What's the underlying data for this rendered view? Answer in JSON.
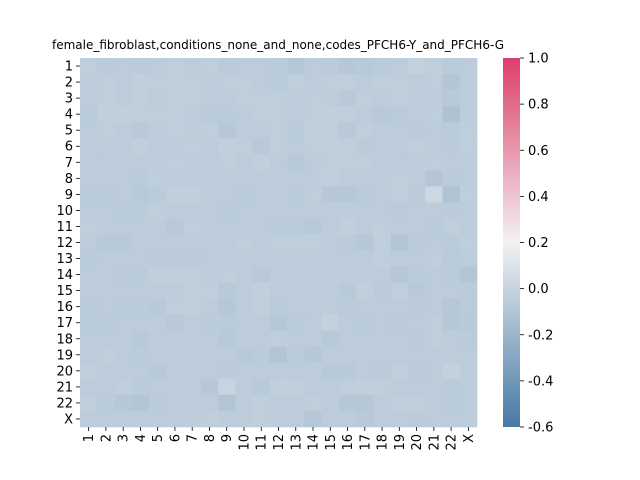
{
  "chart_data": {
    "type": "heatmap",
    "title": "female_fibroblast,conditions_none_and_none,codes_PFCH6-Y_and_PFCH6-G",
    "xlabel": "",
    "ylabel": "",
    "x_categories": [
      "1",
      "2",
      "3",
      "4",
      "5",
      "6",
      "7",
      "8",
      "9",
      "10",
      "11",
      "12",
      "13",
      "14",
      "15",
      "16",
      "17",
      "18",
      "19",
      "20",
      "21",
      "22",
      "X"
    ],
    "y_categories": [
      "1",
      "2",
      "3",
      "4",
      "5",
      "6",
      "7",
      "8",
      "9",
      "10",
      "11",
      "12",
      "13",
      "14",
      "15",
      "16",
      "17",
      "18",
      "19",
      "20",
      "21",
      "22",
      "X"
    ],
    "colorbar": {
      "vmin": -0.6,
      "vmax": 1.0,
      "ticks": [
        "-0.6",
        "-0.4",
        "-0.2",
        "0.0",
        "0.2",
        "0.4",
        "0.6",
        "0.8",
        "1.0"
      ],
      "tick_values": [
        -0.6,
        -0.4,
        -0.2,
        0.0,
        0.2,
        0.4,
        0.6,
        0.8,
        1.0
      ],
      "colormap": "diverging blue-white-red",
      "low_color": "#4679a5",
      "mid_color": "#f2f2f2",
      "high_color": "#dd3e6b"
    },
    "values": [
      [
        -0.04,
        -0.06,
        -0.05,
        -0.06,
        -0.05,
        -0.04,
        -0.05,
        -0.04,
        -0.06,
        -0.05,
        -0.05,
        -0.06,
        -0.08,
        -0.05,
        -0.06,
        -0.08,
        -0.07,
        -0.06,
        -0.05,
        -0.02,
        -0.04,
        -0.06,
        -0.05
      ],
      [
        -0.05,
        -0.04,
        -0.05,
        -0.03,
        -0.04,
        -0.04,
        -0.04,
        -0.05,
        -0.04,
        -0.04,
        -0.05,
        -0.06,
        -0.04,
        -0.05,
        -0.04,
        -0.04,
        -0.05,
        -0.04,
        -0.04,
        -0.05,
        -0.04,
        -0.09,
        -0.05
      ],
      [
        -0.05,
        -0.04,
        -0.05,
        -0.04,
        -0.05,
        -0.04,
        -0.04,
        -0.05,
        -0.05,
        -0.04,
        -0.04,
        -0.04,
        -0.05,
        -0.04,
        -0.05,
        -0.07,
        -0.04,
        -0.05,
        -0.04,
        -0.05,
        -0.05,
        -0.07,
        -0.05
      ],
      [
        -0.06,
        -0.03,
        -0.03,
        -0.04,
        -0.04,
        -0.03,
        -0.05,
        -0.06,
        -0.06,
        -0.05,
        -0.04,
        -0.04,
        -0.05,
        -0.04,
        -0.03,
        -0.04,
        -0.05,
        -0.07,
        -0.06,
        -0.05,
        -0.04,
        -0.12,
        -0.05
      ],
      [
        -0.05,
        -0.04,
        -0.05,
        -0.07,
        -0.05,
        -0.04,
        -0.05,
        -0.04,
        -0.08,
        -0.05,
        -0.05,
        -0.04,
        -0.06,
        -0.03,
        -0.04,
        -0.07,
        -0.04,
        -0.05,
        -0.05,
        -0.06,
        -0.05,
        -0.06,
        -0.04
      ],
      [
        -0.05,
        -0.05,
        -0.05,
        -0.03,
        -0.05,
        -0.05,
        -0.04,
        -0.05,
        -0.03,
        -0.04,
        -0.07,
        -0.04,
        -0.05,
        -0.04,
        -0.03,
        -0.04,
        -0.06,
        -0.05,
        -0.05,
        -0.04,
        -0.05,
        -0.06,
        -0.04
      ],
      [
        -0.05,
        -0.05,
        -0.05,
        -0.05,
        -0.05,
        -0.04,
        -0.05,
        -0.05,
        -0.04,
        -0.05,
        -0.03,
        -0.05,
        -0.07,
        -0.05,
        -0.04,
        -0.04,
        -0.04,
        -0.05,
        -0.05,
        -0.05,
        -0.04,
        -0.05,
        -0.05
      ],
      [
        -0.05,
        -0.05,
        -0.05,
        -0.06,
        -0.04,
        -0.05,
        -0.05,
        -0.05,
        -0.05,
        -0.05,
        -0.05,
        -0.05,
        -0.05,
        -0.05,
        -0.03,
        -0.05,
        -0.05,
        -0.05,
        -0.04,
        -0.05,
        -0.09,
        -0.06,
        -0.05
      ],
      [
        -0.06,
        -0.06,
        -0.05,
        -0.07,
        -0.06,
        -0.03,
        -0.03,
        -0.05,
        -0.05,
        -0.06,
        -0.05,
        -0.05,
        -0.06,
        -0.04,
        -0.08,
        -0.08,
        -0.06,
        -0.05,
        -0.04,
        -0.06,
        0.02,
        -0.11,
        -0.04
      ],
      [
        -0.05,
        -0.05,
        -0.06,
        -0.06,
        -0.04,
        -0.05,
        -0.05,
        -0.05,
        -0.06,
        -0.05,
        -0.05,
        -0.05,
        -0.05,
        -0.05,
        -0.05,
        -0.05,
        -0.05,
        -0.05,
        -0.06,
        -0.05,
        -0.05,
        -0.06,
        -0.05
      ],
      [
        -0.04,
        -0.05,
        -0.05,
        -0.05,
        -0.05,
        -0.07,
        -0.04,
        -0.05,
        -0.05,
        -0.05,
        -0.05,
        -0.06,
        -0.06,
        -0.07,
        -0.05,
        -0.03,
        -0.05,
        -0.04,
        -0.05,
        -0.05,
        -0.06,
        -0.04,
        -0.05
      ],
      [
        -0.05,
        -0.07,
        -0.07,
        -0.05,
        -0.05,
        -0.05,
        -0.05,
        -0.05,
        -0.05,
        -0.04,
        -0.05,
        -0.04,
        -0.04,
        -0.04,
        -0.05,
        -0.06,
        -0.08,
        -0.04,
        -0.1,
        -0.06,
        -0.05,
        -0.06,
        -0.04
      ],
      [
        -0.06,
        -0.05,
        -0.05,
        -0.05,
        -0.06,
        -0.06,
        -0.06,
        -0.05,
        -0.05,
        -0.05,
        -0.05,
        -0.05,
        -0.05,
        -0.05,
        -0.05,
        -0.05,
        -0.05,
        -0.04,
        -0.05,
        -0.05,
        -0.04,
        -0.06,
        -0.05
      ],
      [
        -0.05,
        -0.05,
        -0.06,
        -0.06,
        -0.03,
        -0.03,
        -0.04,
        -0.05,
        -0.04,
        -0.05,
        -0.07,
        -0.05,
        -0.05,
        -0.05,
        -0.05,
        -0.05,
        -0.05,
        -0.05,
        -0.08,
        -0.06,
        -0.05,
        -0.06,
        -0.09
      ],
      [
        -0.05,
        -0.05,
        -0.05,
        -0.05,
        -0.05,
        -0.05,
        -0.04,
        -0.04,
        -0.07,
        -0.05,
        -0.03,
        -0.05,
        -0.05,
        -0.05,
        -0.05,
        -0.07,
        -0.03,
        -0.06,
        -0.04,
        -0.07,
        -0.05,
        -0.05,
        -0.06
      ],
      [
        -0.06,
        -0.05,
        -0.06,
        -0.06,
        -0.07,
        -0.04,
        -0.04,
        -0.05,
        -0.08,
        -0.05,
        -0.04,
        -0.06,
        -0.05,
        -0.05,
        -0.05,
        -0.06,
        -0.05,
        -0.05,
        -0.05,
        -0.06,
        -0.05,
        -0.08,
        -0.06
      ],
      [
        -0.06,
        -0.06,
        -0.05,
        -0.05,
        -0.05,
        -0.07,
        -0.05,
        -0.06,
        -0.06,
        -0.05,
        -0.05,
        -0.08,
        -0.06,
        -0.05,
        -0.02,
        -0.05,
        -0.06,
        -0.05,
        -0.06,
        -0.05,
        -0.04,
        -0.08,
        -0.07
      ],
      [
        -0.05,
        -0.05,
        -0.05,
        -0.07,
        -0.05,
        -0.05,
        -0.05,
        -0.05,
        -0.07,
        -0.05,
        -0.05,
        -0.04,
        -0.05,
        -0.05,
        -0.07,
        -0.05,
        -0.05,
        -0.05,
        -0.05,
        -0.06,
        -0.04,
        -0.05,
        -0.06
      ],
      [
        -0.05,
        -0.04,
        -0.05,
        -0.06,
        -0.05,
        -0.05,
        -0.05,
        -0.05,
        -0.05,
        -0.07,
        -0.06,
        -0.1,
        -0.06,
        -0.08,
        -0.05,
        -0.05,
        -0.05,
        -0.05,
        -0.05,
        -0.05,
        -0.05,
        -0.05,
        -0.05
      ],
      [
        -0.04,
        -0.05,
        -0.05,
        -0.05,
        -0.07,
        -0.05,
        -0.05,
        -0.05,
        -0.06,
        -0.05,
        -0.05,
        -0.05,
        -0.05,
        -0.05,
        -0.07,
        -0.07,
        -0.05,
        -0.06,
        -0.04,
        -0.06,
        -0.05,
        -0.02,
        -0.05
      ],
      [
        -0.05,
        -0.05,
        -0.04,
        -0.06,
        -0.05,
        -0.05,
        -0.05,
        -0.08,
        0.0,
        -0.05,
        -0.07,
        -0.03,
        -0.03,
        -0.05,
        -0.05,
        -0.04,
        -0.03,
        -0.04,
        -0.05,
        -0.05,
        -0.05,
        -0.06,
        -0.05
      ],
      [
        -0.04,
        -0.06,
        -0.08,
        -0.09,
        -0.06,
        -0.05,
        -0.05,
        -0.05,
        -0.1,
        -0.05,
        -0.04,
        -0.05,
        -0.05,
        -0.04,
        -0.05,
        -0.08,
        -0.08,
        -0.05,
        -0.04,
        -0.03,
        -0.05,
        -0.06,
        -0.05
      ],
      [
        -0.05,
        -0.05,
        -0.05,
        -0.05,
        -0.05,
        -0.05,
        -0.05,
        -0.04,
        -0.05,
        -0.05,
        -0.04,
        -0.05,
        -0.05,
        -0.08,
        -0.05,
        -0.05,
        -0.07,
        -0.05,
        -0.05,
        -0.06,
        -0.05,
        -0.05,
        -0.05
      ]
    ]
  }
}
